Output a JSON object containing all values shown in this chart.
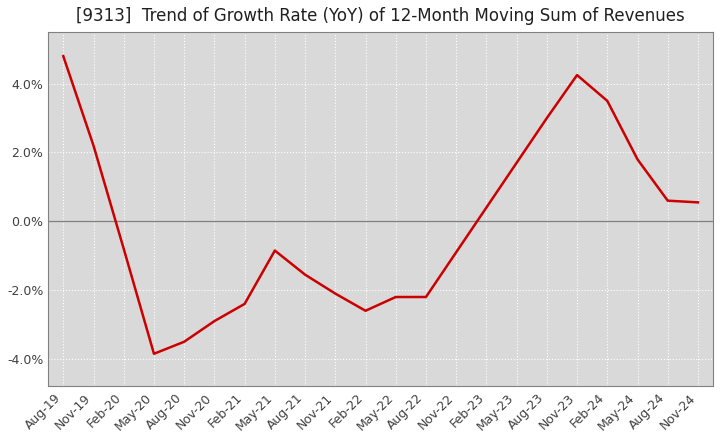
{
  "title": "[9313]  Trend of Growth Rate (YoY) of 12-Month Moving Sum of Revenues",
  "labels": [
    "Aug-19",
    "Nov-19",
    "Feb-20",
    "May-20",
    "Aug-20",
    "Nov-20",
    "Feb-21",
    "May-21",
    "Aug-21",
    "Nov-21",
    "Feb-22",
    "May-22",
    "Aug-22",
    "Nov-22",
    "Feb-23",
    "May-23",
    "Aug-23",
    "Nov-23",
    "Feb-24",
    "May-24",
    "Aug-24",
    "Nov-24"
  ],
  "values": [
    4.8,
    2.2,
    -0.8,
    -3.85,
    -3.5,
    -2.9,
    -2.4,
    -0.85,
    -1.55,
    -2.1,
    -2.6,
    -2.2,
    -2.2,
    -0.9,
    0.4,
    1.7,
    3.0,
    4.25,
    3.5,
    1.8,
    0.6,
    0.55
  ],
  "line_color": "#cc0000",
  "line_width": 1.8,
  "bg_color": "#ffffff",
  "plot_bg_color": "#d9d9d9",
  "grid_color": "#ffffff",
  "grid_style": ":",
  "zero_line_color": "#808080",
  "ylim": [
    -4.8,
    5.5
  ],
  "yticks": [
    -4.0,
    -2.0,
    0.0,
    2.0,
    4.0
  ],
  "title_fontsize": 12,
  "tick_fontsize": 9,
  "spine_color": "#808080"
}
